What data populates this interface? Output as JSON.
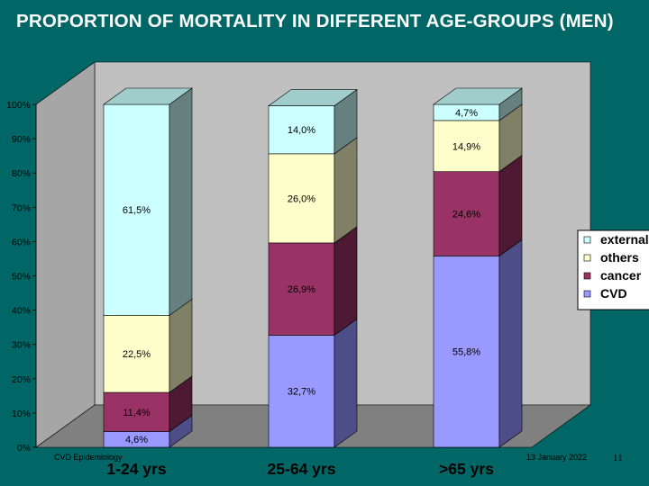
{
  "slide": {
    "title": "PROPORTION OF MORTALITY IN DIFFERENT AGE-GROUPS  (MEN)",
    "footer_left": "CVD Epidemiology",
    "footer_right": "13 January 2022",
    "page_number": "11"
  },
  "chart_data": {
    "type": "bar",
    "stacked": true,
    "percent": true,
    "three_d": true,
    "categories": [
      "1-24 yrs",
      "25-64 yrs",
      ">65 yrs"
    ],
    "series": [
      {
        "name": "CVD",
        "values": [
          4.6,
          32.7,
          55.8
        ],
        "labels": [
          "4,6%",
          "32,7%",
          "55,8%"
        ],
        "color": "#9999ff",
        "side": "#4d4d88",
        "top": "#b3b3ff"
      },
      {
        "name": "cancer",
        "values": [
          11.4,
          26.9,
          24.6
        ],
        "labels": [
          "11,4%",
          "26,9%",
          "24,6%"
        ],
        "color": "#993366",
        "side": "#4d1933",
        "top": "#b34d80"
      },
      {
        "name": "others",
        "values": [
          22.5,
          26.0,
          14.9
        ],
        "labels": [
          "22,5%",
          "26,0%",
          "14,9%"
        ],
        "color": "#ffffcc",
        "side": "#808066",
        "top": "#ffffd9"
      },
      {
        "name": "external",
        "values": [
          61.5,
          14.0,
          4.7
        ],
        "labels": [
          "61,5%",
          "14,0%",
          "4,7%"
        ],
        "color": "#ccffff",
        "side": "#668080",
        "top": "#a0cccc"
      }
    ],
    "legend_order": [
      "external",
      "others",
      "cancer",
      "CVD"
    ],
    "y_ticks": [
      "0%",
      "10%",
      "20%",
      "30%",
      "40%",
      "50%",
      "60%",
      "70%",
      "80%",
      "90%",
      "100%"
    ],
    "ylim": [
      0,
      100
    ],
    "grid": false,
    "legend_position": "right",
    "colors": {
      "background": "#006666",
      "wall": "#c0c0c0",
      "floor": "#808080"
    }
  }
}
